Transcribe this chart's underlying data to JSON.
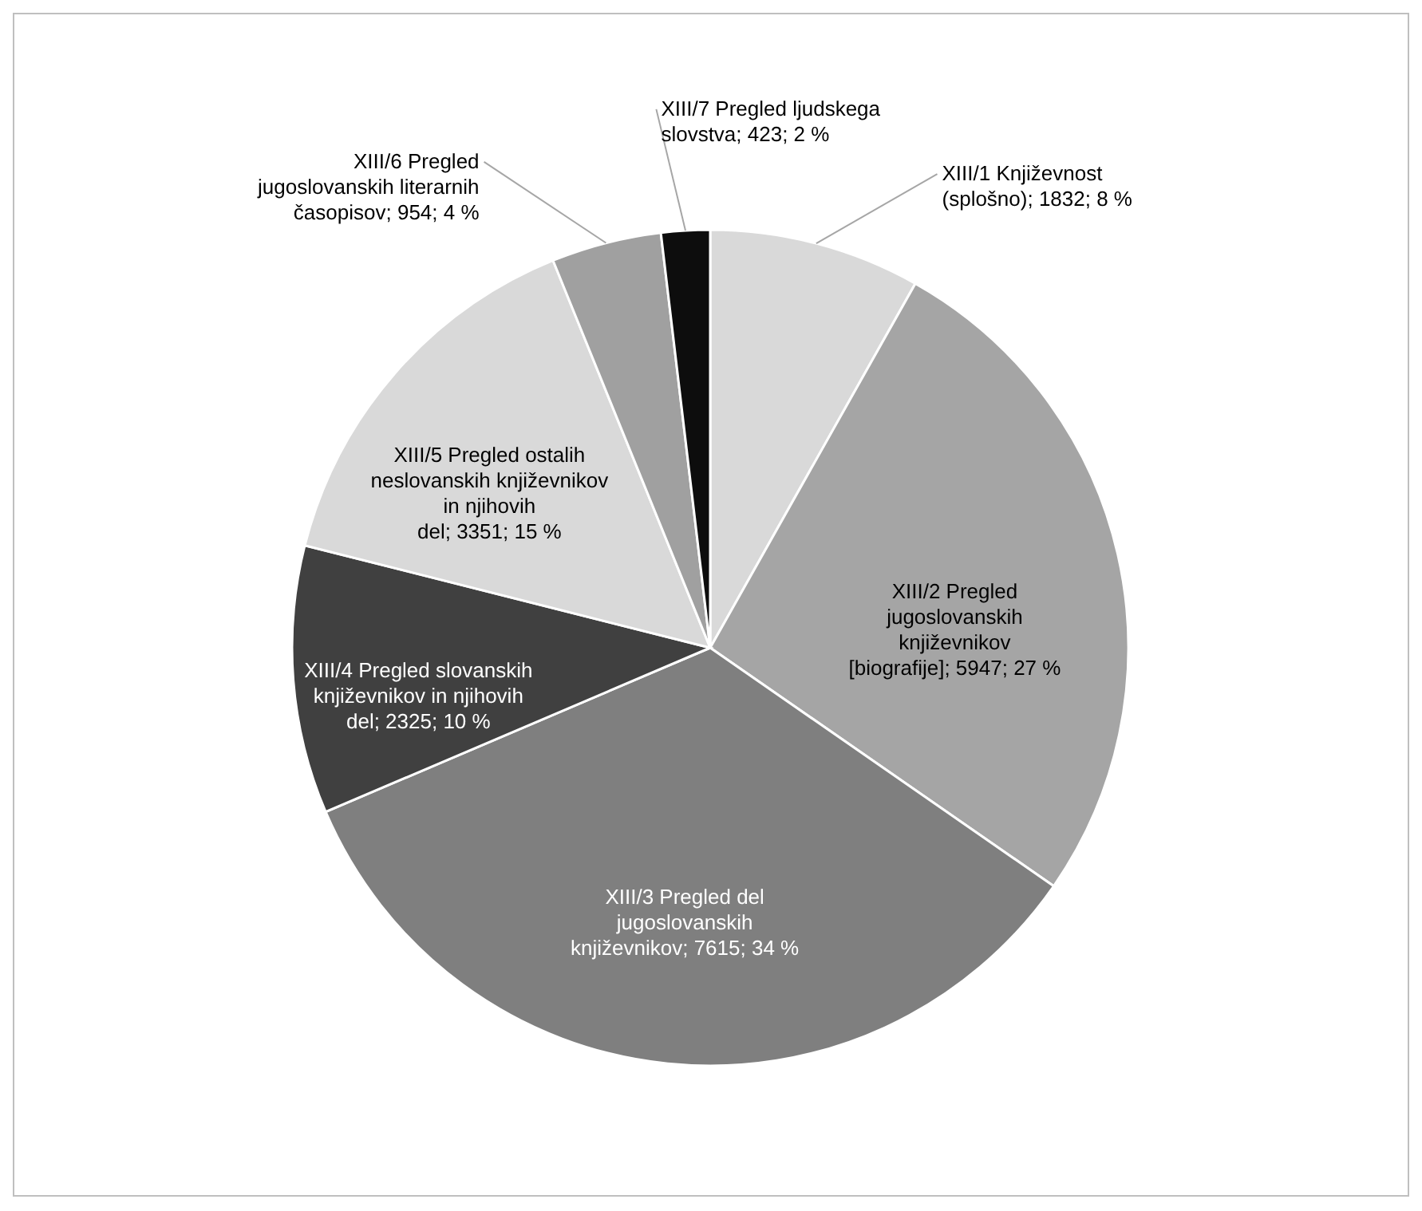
{
  "chart_data": {
    "type": "pie",
    "categories": [
      "XIII/1 Književnost (splošno)",
      "XIII/2 Pregled jugoslovanskih književnikov [biografije]",
      "XIII/3 Pregled del jugoslovanskih književnikov",
      "XIII/4 Pregled slovanskih književnikov in njihovih del",
      "XIII/5 Pregled ostalih neslovanskih književnikov in njihovih del",
      "XIII/6 Pregled jugoslovanskih literarnih časopisov",
      "XIII/7 Pregled ljudskega slovstva"
    ],
    "values": [
      1832,
      5947,
      7615,
      2325,
      3351,
      954,
      423
    ],
    "value_labels": [
      "1832; 8 %",
      "5947; 27 %",
      "7615; 34 %",
      "2325; 10 %",
      "3351; 15 %",
      "954; 4 %",
      "423; 2 %"
    ],
    "colors": [
      "#d9d9d9",
      "#a5a5a5",
      "#7f7f7f",
      "#404040",
      "#d9d9d9",
      "#a0a0a0",
      "#0d0d0d"
    ]
  }
}
